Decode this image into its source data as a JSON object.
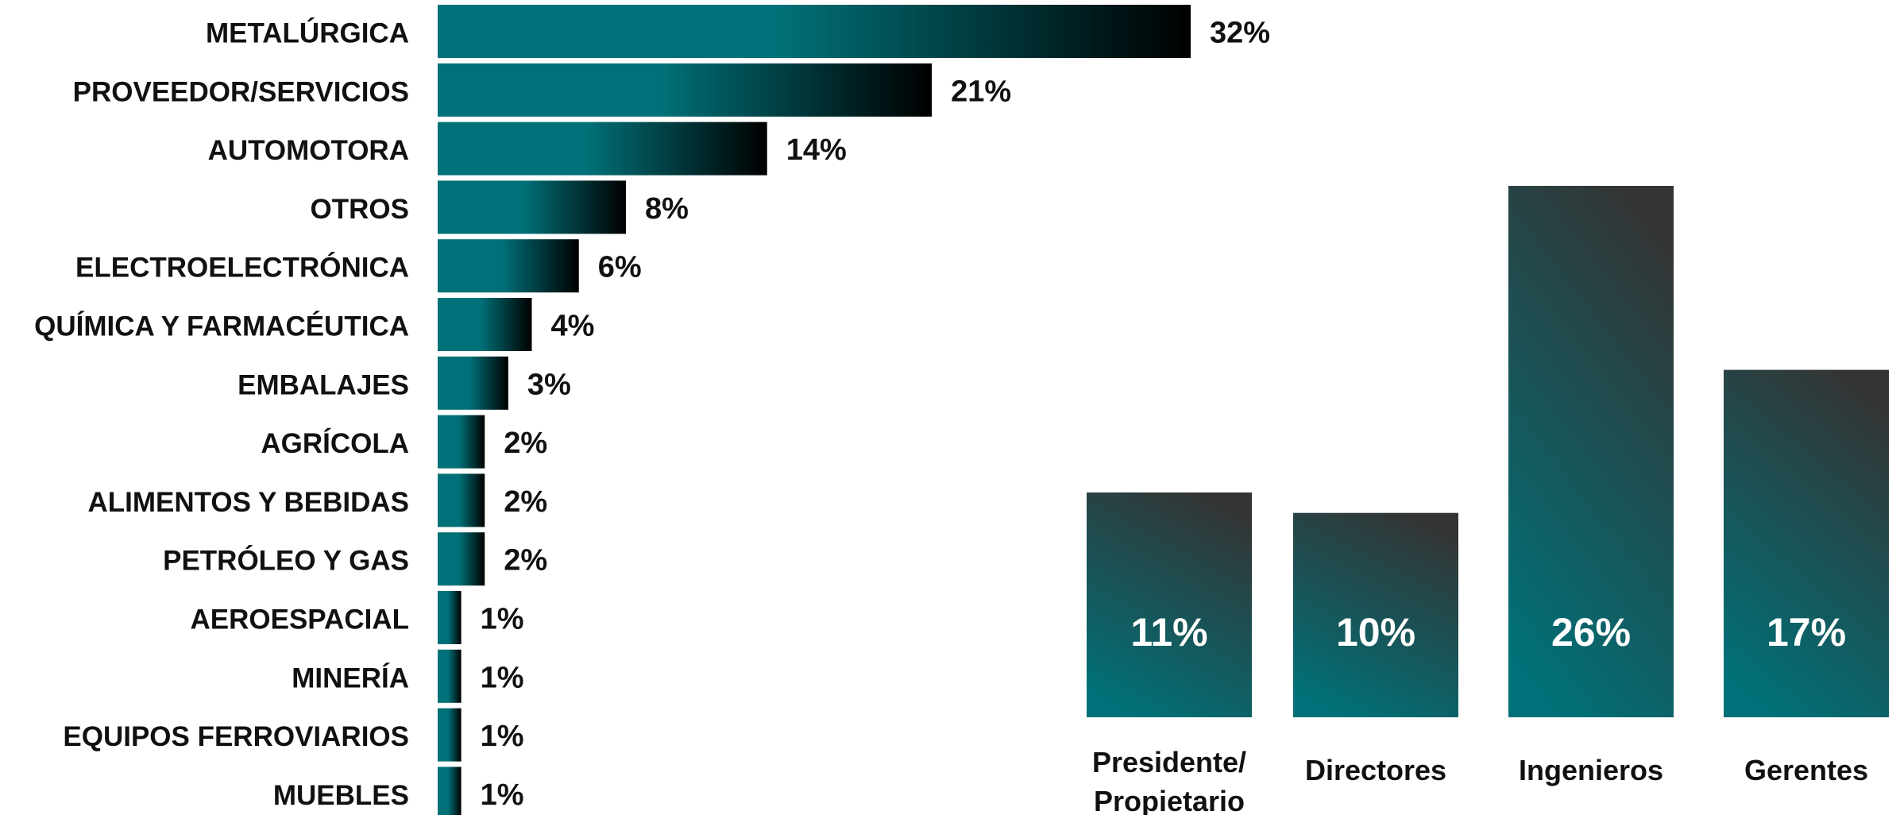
{
  "chart_data": [
    {
      "type": "bar",
      "orientation": "horizontal",
      "categories": [
        "METALÚRGICA",
        "PROVEEDOR/SERVICIOS",
        "AUTOMOTORA",
        "OTROS",
        "ELECTROELECTRÓNICA",
        "QUÍMICA Y FARMACÉUTICA",
        "EMBALAJES",
        "AGRÍCOLA",
        "ALIMENTOS Y BEBIDAS",
        "PETRÓLEO Y GAS",
        "AEROESPACIAL",
        "MINERÍA",
        "EQUIPOS FERROVIARIOS",
        "MUEBLES"
      ],
      "values": [
        32,
        21,
        14,
        8,
        6,
        4,
        3,
        2,
        2,
        2,
        1,
        1,
        1,
        1
      ],
      "value_labels": [
        "32%",
        "21%",
        "14%",
        "8%",
        "6%",
        "4%",
        "3%",
        "2%",
        "2%",
        "2%",
        "1%",
        "1%",
        "1%",
        "1%"
      ],
      "unit": "%",
      "colors": {
        "bar_start": "#007178",
        "bar_end": "#000000"
      },
      "grid": false
    },
    {
      "type": "bar",
      "orientation": "vertical",
      "categories": [
        [
          "Presidente/",
          "Propietario"
        ],
        [
          "Directores"
        ],
        [
          "Ingenieros"
        ],
        [
          "Gerentes"
        ]
      ],
      "values": [
        11,
        10,
        26,
        17
      ],
      "value_labels": [
        "11%",
        "10%",
        "26%",
        "17%"
      ],
      "unit": "%",
      "colors": {
        "bar_top": "#343434",
        "bar_bottom": "#007178",
        "label": "#ffffff"
      },
      "grid": false
    }
  ]
}
